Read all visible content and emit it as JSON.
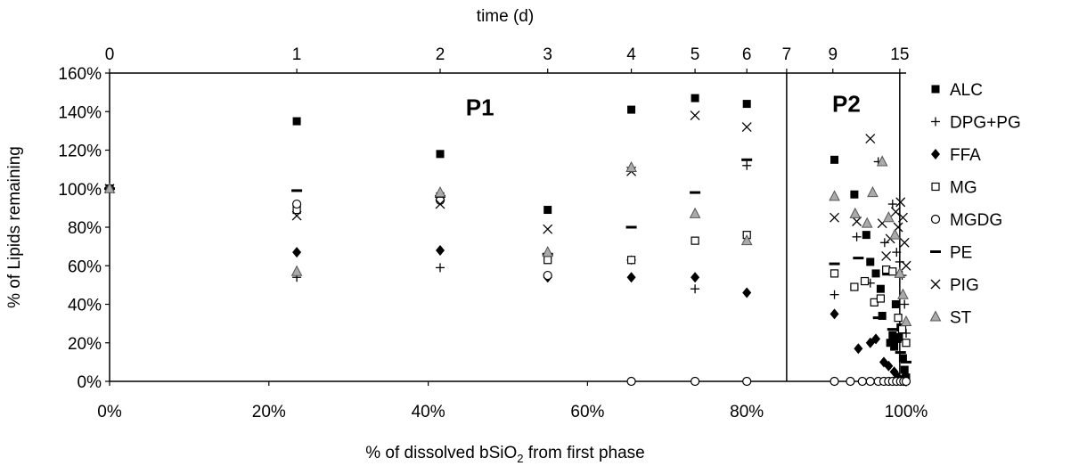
{
  "chart_data": {
    "type": "scatter",
    "top_axis_title": "time (d)",
    "top_ticks": [
      {
        "label": "0",
        "x": 0
      },
      {
        "label": "1",
        "x": 23.5
      },
      {
        "label": "2",
        "x": 41.5
      },
      {
        "label": "3",
        "x": 55.0
      },
      {
        "label": "4",
        "x": 65.5
      },
      {
        "label": "5",
        "x": 73.5
      },
      {
        "label": "6",
        "x": 80.0
      },
      {
        "label": "7",
        "x": 85.0
      },
      {
        "label": "9",
        "x": 90.8
      },
      {
        "label": "15",
        "x": 99.2
      }
    ],
    "xlabel": "% of dissolved bSiO",
    "xlabel_sub": "2",
    "xlabel_tail": " from first phase",
    "ylabel": "% of Lipids remaining",
    "xlim": [
      0,
      100
    ],
    "ylim": [
      0,
      160
    ],
    "x_ticks": [
      0,
      20,
      40,
      60,
      80,
      100
    ],
    "x_tick_labels": [
      "0%",
      "20%",
      "40%",
      "60%",
      "80%",
      "100%"
    ],
    "y_ticks": [
      0,
      20,
      40,
      60,
      80,
      100,
      120,
      140,
      160
    ],
    "y_tick_labels": [
      "0%",
      "20%",
      "40%",
      "60%",
      "80%",
      "100%",
      "120%",
      "140%",
      "160%"
    ],
    "phase_dividers": [
      85.0,
      99.2
    ],
    "phase_labels": [
      {
        "text": "P1",
        "x": 46.5,
        "y": 138
      },
      {
        "text": "P2",
        "x": 92.5,
        "y": 140
      }
    ],
    "legend_position": "right",
    "series": [
      {
        "name": "ALC",
        "marker": "filled-square",
        "points": [
          [
            0,
            100
          ],
          [
            23.5,
            135
          ],
          [
            41.5,
            118
          ],
          [
            55,
            89
          ],
          [
            65.5,
            141
          ],
          [
            73.5,
            147
          ],
          [
            80,
            144
          ],
          [
            91,
            115
          ],
          [
            93.5,
            97
          ],
          [
            95,
            76
          ],
          [
            95.5,
            62
          ],
          [
            96.2,
            56
          ],
          [
            96.8,
            48
          ],
          [
            97,
            34
          ],
          [
            97.5,
            57
          ],
          [
            98,
            20
          ],
          [
            98.3,
            24
          ],
          [
            98.5,
            18
          ],
          [
            98.7,
            40
          ],
          [
            98.9,
            22
          ],
          [
            99.1,
            23
          ],
          [
            99.3,
            28
          ],
          [
            99.6,
            12
          ],
          [
            99.8,
            6
          ],
          [
            100,
            2
          ]
        ]
      },
      {
        "name": "DPG+PG",
        "marker": "plus",
        "points": [
          [
            0,
            100
          ],
          [
            23.5,
            54
          ],
          [
            41.5,
            59
          ],
          [
            55,
            65
          ],
          [
            65.5,
            63
          ],
          [
            73.5,
            48
          ],
          [
            80,
            112
          ],
          [
            91,
            45
          ],
          [
            93.8,
            75
          ],
          [
            95.5,
            51
          ],
          [
            96.5,
            114
          ],
          [
            97.3,
            72
          ],
          [
            98.3,
            92
          ],
          [
            98.8,
            67
          ],
          [
            99.2,
            62
          ],
          [
            99.5,
            55
          ],
          [
            99.8,
            40
          ],
          [
            100,
            25
          ]
        ]
      },
      {
        "name": "FFA",
        "marker": "filled-diamond",
        "points": [
          [
            0,
            100
          ],
          [
            23.5,
            67
          ],
          [
            41.5,
            68
          ],
          [
            55,
            54
          ],
          [
            65.5,
            54
          ],
          [
            73.5,
            54
          ],
          [
            80,
            46
          ],
          [
            91,
            35
          ],
          [
            94,
            17
          ],
          [
            95.5,
            20
          ],
          [
            96.2,
            22
          ],
          [
            97.2,
            10
          ],
          [
            97.8,
            8
          ],
          [
            98.5,
            5
          ],
          [
            99,
            2
          ],
          [
            99.5,
            1
          ],
          [
            100,
            0
          ]
        ]
      },
      {
        "name": "MG",
        "marker": "open-square",
        "points": [
          [
            0,
            100
          ],
          [
            23.5,
            89
          ],
          [
            41.5,
            96
          ],
          [
            55,
            63
          ],
          [
            65.5,
            63
          ],
          [
            73.5,
            73
          ],
          [
            80,
            76
          ],
          [
            91,
            56
          ],
          [
            93.5,
            49
          ],
          [
            94.8,
            52
          ],
          [
            96,
            41
          ],
          [
            96.8,
            43
          ],
          [
            97.5,
            58
          ],
          [
            98.3,
            57
          ],
          [
            99,
            33
          ],
          [
            99.5,
            27
          ],
          [
            100,
            20
          ]
        ]
      },
      {
        "name": "MGDG",
        "marker": "open-circle",
        "points": [
          [
            0,
            100
          ],
          [
            23.5,
            92
          ],
          [
            41.5,
            94
          ],
          [
            55,
            55
          ],
          [
            65.5,
            0
          ],
          [
            73.5,
            0
          ],
          [
            80,
            0
          ],
          [
            91,
            0
          ],
          [
            93,
            0
          ],
          [
            94.5,
            0
          ],
          [
            95.5,
            0
          ],
          [
            96.5,
            0
          ],
          [
            97.2,
            0
          ],
          [
            97.8,
            0
          ],
          [
            98.3,
            0
          ],
          [
            98.8,
            0
          ],
          [
            99.3,
            0
          ],
          [
            99.7,
            0
          ],
          [
            100,
            0
          ]
        ]
      },
      {
        "name": "PE",
        "marker": "dash",
        "points": [
          [
            0,
            100
          ],
          [
            23.5,
            99
          ],
          [
            41.5,
            96
          ],
          [
            55,
            66
          ],
          [
            65.5,
            80
          ],
          [
            73.5,
            98
          ],
          [
            80,
            115
          ],
          [
            91,
            61
          ],
          [
            94,
            64
          ],
          [
            96.5,
            33
          ],
          [
            98.3,
            27
          ],
          [
            99.3,
            15
          ],
          [
            100,
            10
          ]
        ]
      },
      {
        "name": "PIG",
        "marker": "x",
        "points": [
          [
            0,
            100
          ],
          [
            23.5,
            86
          ],
          [
            41.5,
            92
          ],
          [
            55,
            79
          ],
          [
            65.5,
            109
          ],
          [
            73.5,
            138
          ],
          [
            80,
            132
          ],
          [
            91,
            85
          ],
          [
            93.8,
            83
          ],
          [
            95.5,
            126
          ],
          [
            97,
            82
          ],
          [
            97.5,
            65
          ],
          [
            98,
            74
          ],
          [
            98.7,
            88
          ],
          [
            99,
            80
          ],
          [
            99.3,
            93
          ],
          [
            99.6,
            85
          ],
          [
            99.8,
            72
          ],
          [
            100,
            60
          ]
        ]
      },
      {
        "name": "ST",
        "marker": "triangle",
        "points": [
          [
            0,
            100
          ],
          [
            23.5,
            57
          ],
          [
            41.5,
            98
          ],
          [
            55,
            67
          ],
          [
            65.5,
            111
          ],
          [
            73.5,
            87
          ],
          [
            80,
            73
          ],
          [
            91,
            96
          ],
          [
            93.6,
            87
          ],
          [
            95.1,
            82
          ],
          [
            95.8,
            98
          ],
          [
            97,
            114
          ],
          [
            97.8,
            85
          ],
          [
            98.6,
            76
          ],
          [
            99.2,
            56
          ],
          [
            99.6,
            45
          ],
          [
            100,
            31
          ]
        ]
      }
    ]
  }
}
